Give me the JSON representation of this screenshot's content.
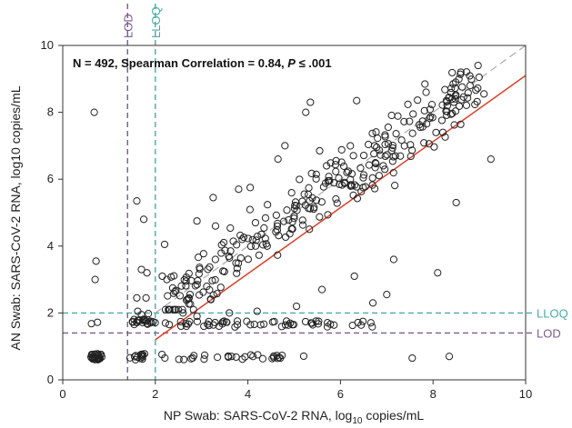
{
  "chart_data": {
    "type": "scatter",
    "title": "",
    "annotation": {
      "prefix": "N = 492, Spearman Correlation = 0.84, ",
      "p_symbol": "P",
      "suffix": " ≤ .001"
    },
    "xlabel": {
      "prefix": "NP Swab: SARS-CoV-2 RNA, log",
      "subscript": "10",
      "suffix": " copies/mL"
    },
    "ylabel": "AN Swab: SARS-CoV-2 RNA, log10 copies/mL",
    "xlim": [
      0,
      10
    ],
    "ylim": [
      0,
      10
    ],
    "xticks": [
      0,
      2,
      4,
      6,
      8,
      10
    ],
    "yticks": [
      0,
      2,
      4,
      6,
      8,
      10
    ],
    "grid": false,
    "reference_lines": [
      {
        "label": "LOD",
        "axis": "x",
        "value": 1.4,
        "color": "#7b5a8f"
      },
      {
        "label": "LLOQ",
        "axis": "x",
        "value": 2.0,
        "color": "#4aa9a9"
      },
      {
        "label": "LLOQ",
        "axis": "y",
        "value": 2.0,
        "color": "#4aa9a9"
      },
      {
        "label": "LOD",
        "axis": "y",
        "value": 1.4,
        "color": "#7b5a8f"
      }
    ],
    "identity_line": {
      "x": [
        2.0,
        10.0
      ],
      "y": [
        2.0,
        10.0
      ],
      "color": "#aaaaaa",
      "style": "dashed"
    },
    "regression_line": {
      "x": [
        2.0,
        10.0
      ],
      "y": [
        1.2,
        9.1
      ],
      "color": "#d9412b"
    },
    "points_explicit": [
      [
        0.68,
        8.0
      ],
      [
        0.72,
        3.55
      ],
      [
        0.7,
        3.0
      ],
      [
        0.62,
        1.68
      ],
      [
        0.75,
        1.72
      ],
      [
        1.6,
        5.35
      ],
      [
        1.75,
        4.8
      ],
      [
        1.7,
        3.3
      ],
      [
        1.82,
        3.2
      ],
      [
        1.6,
        2.45
      ],
      [
        1.8,
        2.45
      ],
      [
        1.62,
        2.05
      ],
      [
        1.7,
        1.95
      ],
      [
        1.85,
        1.98
      ],
      [
        2.2,
        4.05
      ],
      [
        2.25,
        3.0
      ],
      [
        2.15,
        3.1
      ],
      [
        8.8,
        8.8
      ],
      [
        8.6,
        9.2
      ],
      [
        9.1,
        8.55
      ],
      [
        9.25,
        6.6
      ],
      [
        8.45,
        8.3
      ],
      [
        7.55,
        0.65
      ],
      [
        8.35,
        0.7
      ],
      [
        4.7,
        0.65
      ],
      [
        3.25,
        5.45
      ],
      [
        2.9,
        4.75
      ],
      [
        4.05,
        5.75
      ],
      [
        5.25,
        8.0
      ],
      [
        5.35,
        8.3
      ],
      [
        6.35,
        8.35
      ],
      [
        7.85,
        8.6
      ],
      [
        5.6,
        2.7
      ],
      [
        7.0,
        2.55
      ],
      [
        4.65,
        6.6
      ],
      [
        4.8,
        7.0
      ],
      [
        5.55,
        6.85
      ],
      [
        5.7,
        6.4
      ],
      [
        3.8,
        5.7
      ],
      [
        3.3,
        4.6
      ],
      [
        2.6,
        2.0
      ],
      [
        2.9,
        1.9
      ],
      [
        3.6,
        2.0
      ],
      [
        3.2,
        2.4
      ],
      [
        4.2,
        2.05
      ],
      [
        5.05,
        2.2
      ],
      [
        6.7,
        2.3
      ],
      [
        6.3,
        3.1
      ],
      [
        7.15,
        3.6
      ],
      [
        8.1,
        3.2
      ],
      [
        8.5,
        5.3
      ]
    ],
    "point_clusters": [
      {
        "note": "x near 0.7, y near LOD/2",
        "x": [
          0.58,
          0.85
        ],
        "y": [
          0.6,
          0.78
        ],
        "count": 34
      },
      {
        "note": "x between LOD and LLOQ, y at LOD",
        "x": [
          1.5,
          2.0
        ],
        "y": [
          1.6,
          1.82
        ],
        "count": 22
      },
      {
        "note": "x between LOD and LLOQ, y low",
        "x": [
          1.45,
          1.85
        ],
        "y": [
          0.6,
          0.78
        ],
        "count": 14
      },
      {
        "note": "x above LLOQ, y at LOD",
        "x": [
          2.1,
          6.8
        ],
        "y": [
          1.58,
          1.76
        ],
        "count": 55
      },
      {
        "note": "x above LLOQ, y low",
        "x": [
          2.0,
          5.3
        ],
        "y": [
          0.6,
          0.76
        ],
        "count": 28
      },
      {
        "note": "main correlated cloud",
        "x": [
          2.2,
          9.0
        ],
        "slope": 0.99,
        "intercept": -0.7,
        "y_spread": 0.85,
        "count": 290
      }
    ],
    "series": [
      {
        "name": "",
        "marker": "open-circle",
        "color": "#222222"
      }
    ]
  }
}
